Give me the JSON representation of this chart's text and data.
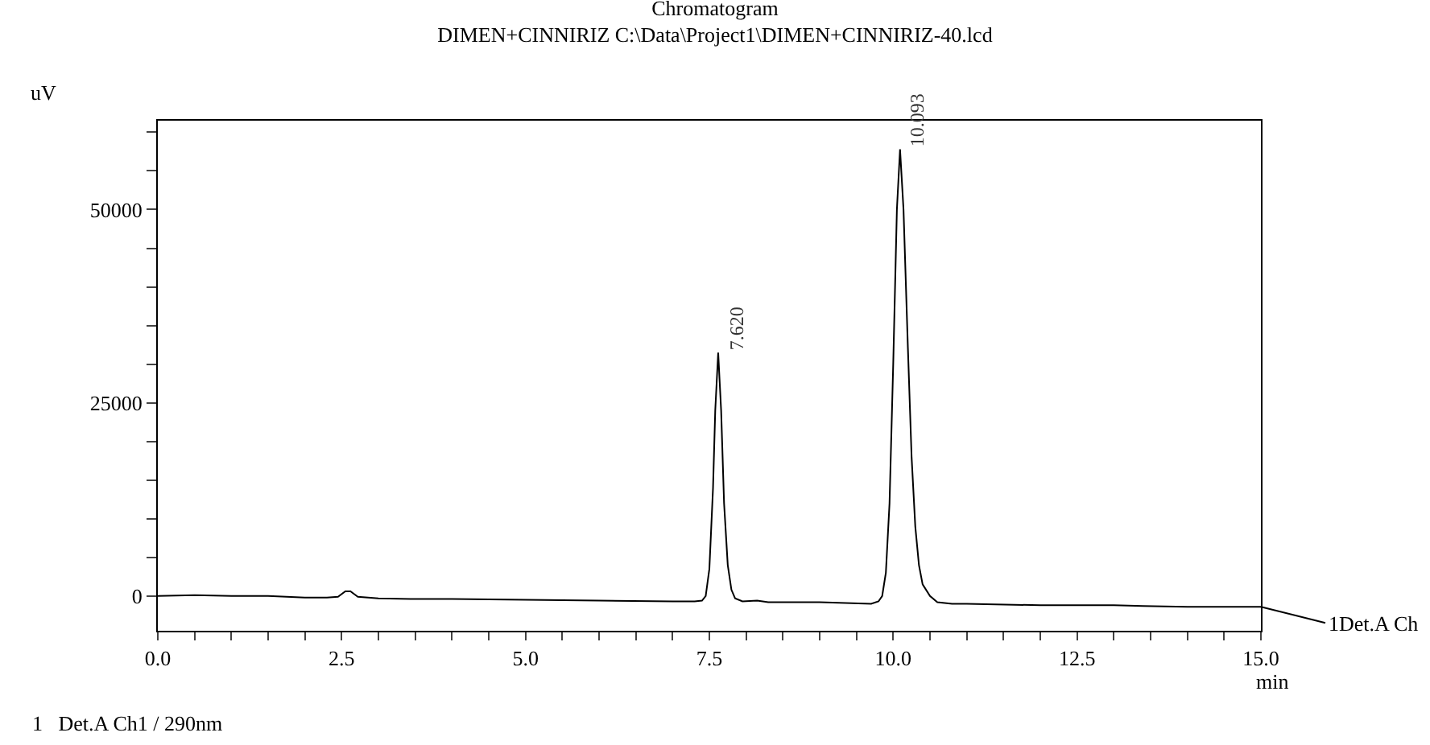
{
  "chart_data": {
    "type": "line",
    "title": "Chromatogram",
    "subtitle": "DIMEN+CINNIRIZ C:\\Data\\Project1\\DIMEN+CINNIRIZ-40.lcd",
    "xlabel": "min",
    "ylabel": "uV",
    "xlim": [
      0,
      15
    ],
    "ylim": [
      -4500,
      61500
    ],
    "xticks": [
      {
        "value": 0,
        "label": "0.0"
      },
      {
        "value": 0.5,
        "label": null
      },
      {
        "value": 1,
        "label": null
      },
      {
        "value": 1.5,
        "label": null
      },
      {
        "value": 2,
        "label": null
      },
      {
        "value": 2.5,
        "label": "2.5"
      },
      {
        "value": 3,
        "label": null
      },
      {
        "value": 3.5,
        "label": null
      },
      {
        "value": 4,
        "label": null
      },
      {
        "value": 4.5,
        "label": null
      },
      {
        "value": 5,
        "label": "5.0"
      },
      {
        "value": 5.5,
        "label": null
      },
      {
        "value": 6,
        "label": null
      },
      {
        "value": 6.5,
        "label": null
      },
      {
        "value": 7,
        "label": null
      },
      {
        "value": 7.5,
        "label": "7.5"
      },
      {
        "value": 8,
        "label": null
      },
      {
        "value": 8.5,
        "label": null
      },
      {
        "value": 9,
        "label": null
      },
      {
        "value": 9.5,
        "label": null
      },
      {
        "value": 10,
        "label": "10.0"
      },
      {
        "value": 10.5,
        "label": null
      },
      {
        "value": 11,
        "label": null
      },
      {
        "value": 11.5,
        "label": null
      },
      {
        "value": 12,
        "label": null
      },
      {
        "value": 12.5,
        "label": "12.5"
      },
      {
        "value": 13,
        "label": null
      },
      {
        "value": 13.5,
        "label": null
      },
      {
        "value": 14,
        "label": null
      },
      {
        "value": 14.5,
        "label": null
      },
      {
        "value": 15,
        "label": "15.0"
      }
    ],
    "yticks": [
      0,
      {
        "value": 5000,
        "label": null
      },
      {
        "value": 10000,
        "label": null
      },
      {
        "value": 15000,
        "label": null
      },
      {
        "value": 20000,
        "label": null
      },
      25000,
      {
        "value": 30000,
        "label": null
      },
      {
        "value": 35000,
        "label": null
      },
      {
        "value": 40000,
        "label": null
      },
      {
        "value": 45000,
        "label": null
      },
      50000,
      {
        "value": 55000,
        "label": null
      },
      {
        "value": 60000,
        "label": null
      }
    ],
    "grid": false,
    "legend": "right",
    "marker": "none",
    "line_style": "solid",
    "series": [
      {
        "name": "1Det.A Ch",
        "color": "#000000",
        "x": [
          0,
          0.5,
          1,
          1.5,
          2,
          2.3,
          2.45,
          2.55,
          2.62,
          2.72,
          3,
          3.5,
          4,
          5,
          6,
          7,
          7.3,
          7.4,
          7.45,
          7.5,
          7.55,
          7.58,
          7.62,
          7.66,
          7.7,
          7.75,
          7.8,
          7.85,
          7.95,
          8.15,
          8.3,
          9,
          9.7,
          9.8,
          9.85,
          9.9,
          9.95,
          10,
          10.05,
          10.093,
          10.14,
          10.2,
          10.25,
          10.3,
          10.35,
          10.4,
          10.5,
          10.6,
          10.8,
          11,
          12,
          13,
          13.4,
          14,
          15
        ],
        "values": [
          0,
          100,
          0,
          0,
          -200,
          -200,
          -100,
          600,
          600,
          -100,
          -300,
          -400,
          -400,
          -500,
          -600,
          -700,
          -700,
          -600,
          0,
          3500,
          14000,
          24000,
          31500,
          24000,
          12000,
          4000,
          800,
          -300,
          -700,
          -600,
          -800,
          -800,
          -1000,
          -700,
          0,
          3000,
          12000,
          30000,
          50000,
          57800,
          50000,
          32000,
          18000,
          9000,
          4000,
          1500,
          0,
          -800,
          -1000,
          -1000,
          -1200,
          -1200,
          -1300,
          -1400,
          -1400
        ]
      }
    ],
    "annotations": [
      {
        "text": "7.620",
        "x": 7.62,
        "y": 31500
      },
      {
        "text": "10.093",
        "x": 10.093,
        "y": 57800
      },
      "1   Det.A Ch1 / 290nm"
    ]
  }
}
